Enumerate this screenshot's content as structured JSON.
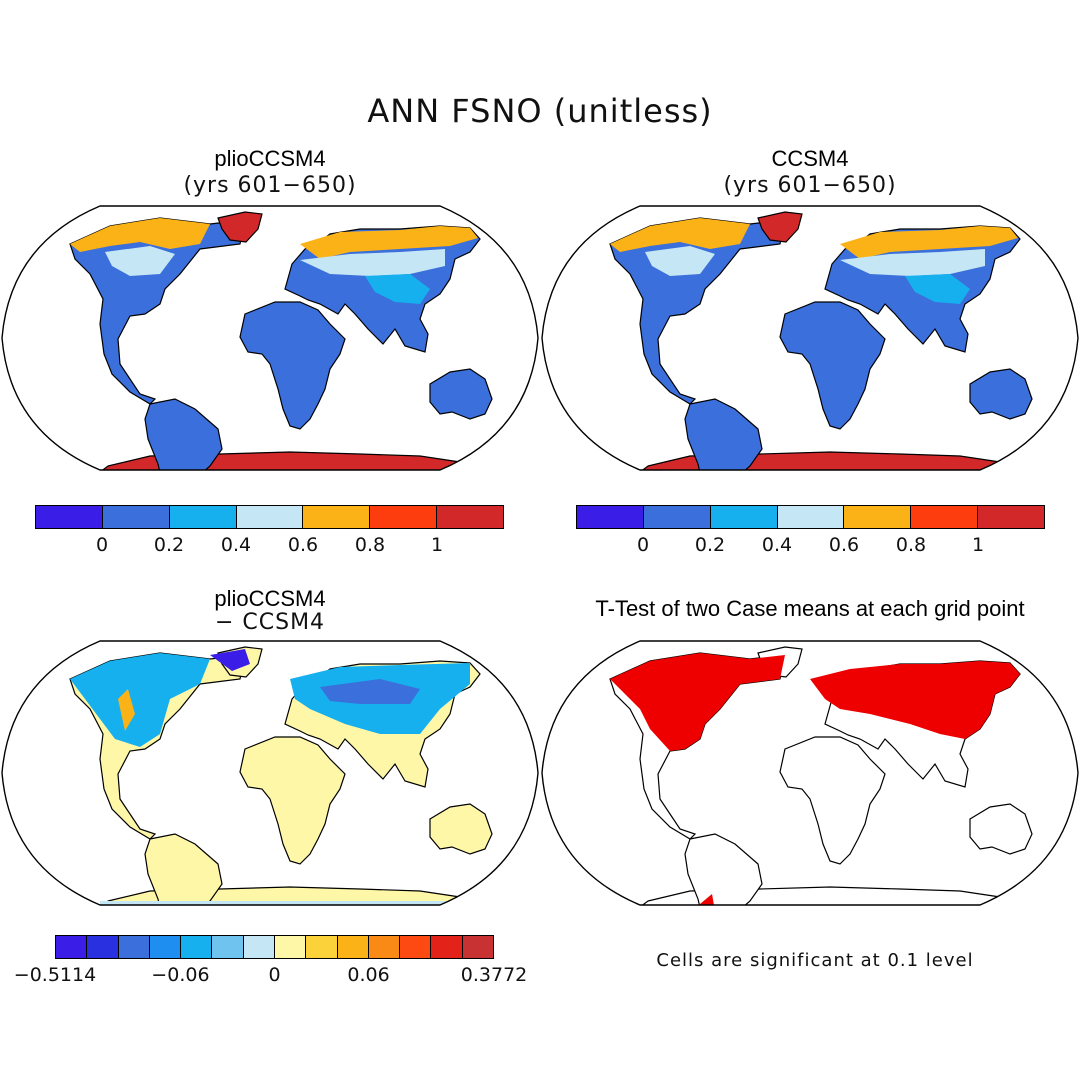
{
  "title": "ANN FSNO (unitless)",
  "panels": {
    "top_left": {
      "title": "plioCCSM4",
      "subtitle": "(yrs 601−650)"
    },
    "top_right": {
      "title": "CCSM4",
      "subtitle": "(yrs 601−650)"
    },
    "bottom_left": {
      "title": "plioCCSM4",
      "subtitle": "− CCSM4"
    },
    "bottom_right": {
      "title": "T-Test of two Case means at each grid point"
    }
  },
  "colorbar_abs": {
    "colors": [
      "#3a1ee8",
      "#3a6fdc",
      "#16b0ee",
      "#c5e6f5",
      "#fbb216",
      "#fd3d0e",
      "#d3282a"
    ],
    "ticks": [
      "0",
      "0.2",
      "0.4",
      "0.6",
      "0.8",
      "1"
    ]
  },
  "colorbar_diff": {
    "colors": [
      "#3a1ee8",
      "#2830e0",
      "#3a6fdc",
      "#1e8ff0",
      "#16b0ee",
      "#6ec4ee",
      "#c5e6f5",
      "#fff7a8",
      "#fcd23a",
      "#fbb216",
      "#f98a16",
      "#fd4a12",
      "#e3221a",
      "#c93232"
    ],
    "ticks": [
      "−0.5114",
      "−0.06",
      "0",
      "0.06",
      "0.3772"
    ]
  },
  "significance_note": "Cells are significant at 0.1 level",
  "map_colors": {
    "land_snowfree": "#3a6fdc",
    "snow_mid": "#16b0ee",
    "snow_light": "#c5e6f5",
    "snow_orange": "#fbb216",
    "ice_red": "#d3282a",
    "diff_zero": "#fff7a8",
    "significant": "#ee0000"
  }
}
